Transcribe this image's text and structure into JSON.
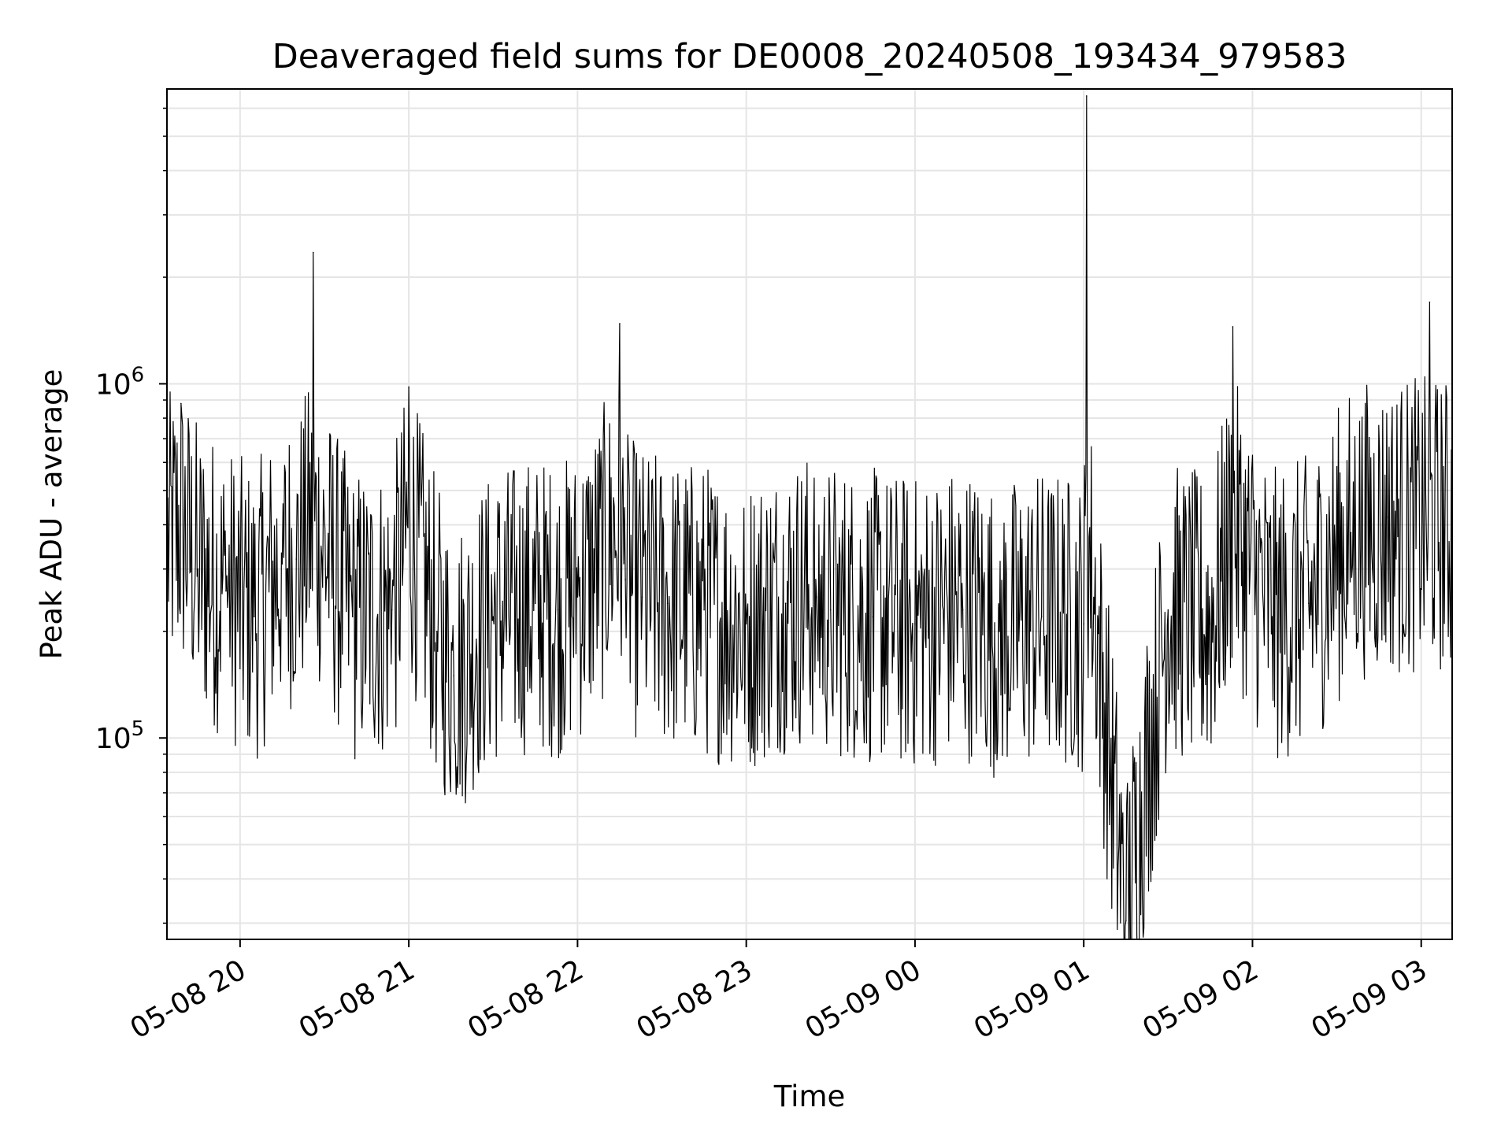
{
  "chart_data": {
    "type": "line",
    "title": "Deaveraged field sums for DE0008_20240508_193434_979583",
    "xlabel": "Time",
    "ylabel": "Peak ADU - average",
    "yscale": "log",
    "ylim": [
      27000,
      6800000
    ],
    "xlim": [
      "2024-05-08 19:34",
      "2024-05-09 03:11"
    ],
    "grid": true,
    "line_color": "#000000",
    "grid_color": "#e5e5e5",
    "x_ticks": [
      {
        "value": "2024-05-08 20:00",
        "label": "05-08 20"
      },
      {
        "value": "2024-05-08 21:00",
        "label": "05-08 21"
      },
      {
        "value": "2024-05-08 22:00",
        "label": "05-08 22"
      },
      {
        "value": "2024-05-08 23:00",
        "label": "05-08 23"
      },
      {
        "value": "2024-05-09 00:00",
        "label": "05-09 00"
      },
      {
        "value": "2024-05-09 01:00",
        "label": "05-09 01"
      },
      {
        "value": "2024-05-09 02:00",
        "label": "05-09 02"
      },
      {
        "value": "2024-05-09 03:00",
        "label": "05-09 03"
      }
    ],
    "y_ticks": [
      {
        "value": 100000,
        "base": "10",
        "exp": "5"
      },
      {
        "value": 1000000,
        "base": "10",
        "exp": "6"
      }
    ],
    "series": [
      {
        "x": [
          "2024-05-08 19:34",
          "2024-05-08 19:39",
          "2024-05-08 19:45",
          "2024-05-08 19:55",
          "2024-05-08 20:05",
          "2024-05-08 20:15",
          "2024-05-08 20:20",
          "2024-05-08 20:26",
          "2024-05-08 20:40",
          "2024-05-08 20:54",
          "2024-05-08 21:00",
          "2024-05-08 21:10",
          "2024-05-08 21:16",
          "2024-05-08 21:24",
          "2024-05-08 21:30",
          "2024-05-08 21:45",
          "2024-05-08 21:53",
          "2024-05-08 22:00",
          "2024-05-08 22:15",
          "2024-05-08 22:17",
          "2024-05-08 22:23",
          "2024-05-08 22:32",
          "2024-05-08 22:45",
          "2024-05-08 23:00",
          "2024-05-08 23:14",
          "2024-05-08 23:25",
          "2024-05-08 23:30",
          "2024-05-08 23:45",
          "2024-05-09 00:00",
          "2024-05-09 00:17",
          "2024-05-09 00:30",
          "2024-05-09 00:45",
          "2024-05-09 01:00",
          "2024-05-09 01:01",
          "2024-05-09 01:15",
          "2024-05-09 01:30",
          "2024-05-09 01:45",
          "2024-05-09 01:53",
          "2024-05-09 02:07",
          "2024-05-09 02:20",
          "2024-05-09 02:35",
          "2024-05-09 02:48",
          "2024-05-09 02:57",
          "2024-05-09 03:03",
          "2024-05-09 03:11"
        ],
        "y": [
          350000,
          880000,
          300000,
          260000,
          220000,
          310000,
          320000,
          2350000,
          220000,
          230000,
          980000,
          200000,
          150000,
          190000,
          220000,
          240000,
          230000,
          250000,
          1480000,
          280000,
          250000,
          240000,
          230000,
          210000,
          240000,
          250000,
          230000,
          220000,
          210000,
          230000,
          200000,
          220000,
          210000,
          6500000,
          30500,
          230000,
          210000,
          1450000,
          220000,
          240000,
          380000,
          420000,
          500000,
          1700000,
          520000
        ]
      }
    ]
  }
}
